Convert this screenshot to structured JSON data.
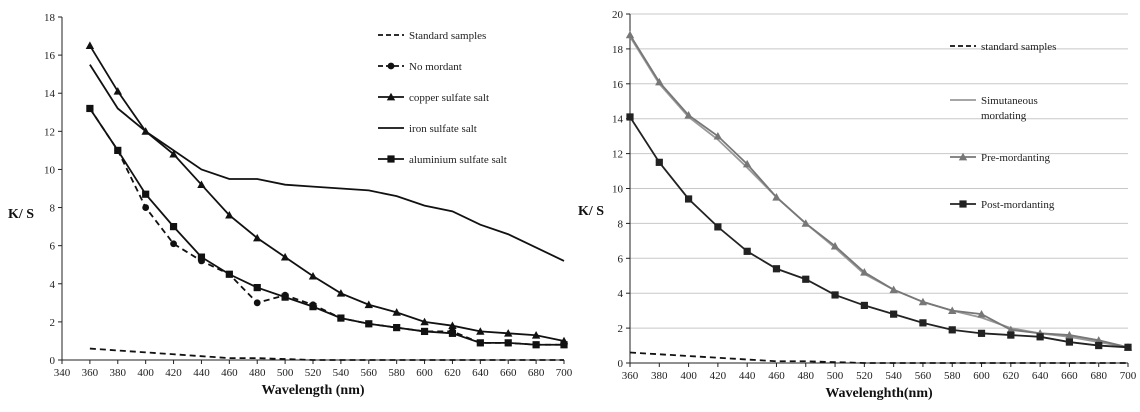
{
  "chart_data": [
    {
      "type": "line",
      "title": "",
      "xlabel": "Wavelength (nm)",
      "ylabel": "K/ S",
      "xlim": [
        340,
        700
      ],
      "ylim": [
        0,
        18
      ],
      "x_ticks": [
        "340",
        "360",
        "380",
        "400",
        "420",
        "440",
        "460",
        "480",
        "500",
        "520",
        "540",
        "560",
        "580",
        "600",
        "620",
        "640",
        "660",
        "680",
        "700"
      ],
      "y_ticks": [
        "0",
        "2",
        "4",
        "6",
        "8",
        "10",
        "12",
        "14",
        "16",
        "18"
      ],
      "grid": false,
      "legend_position": "top-right",
      "series": [
        {
          "name": "Standard samples",
          "style": "dashed",
          "marker": "none",
          "color": "#111111",
          "x": [
            360,
            380,
            400,
            420,
            440,
            460,
            480,
            500,
            520,
            540,
            560,
            580,
            600,
            620,
            640,
            660,
            680,
            700
          ],
          "y": [
            0.6,
            0.5,
            0.4,
            0.3,
            0.2,
            0.1,
            0.1,
            0.05,
            0.0,
            0.0,
            0.0,
            0.0,
            0.0,
            0.0,
            0.0,
            0.0,
            0.0,
            0.0
          ]
        },
        {
          "name": "No mordant",
          "style": "dashed",
          "marker": "circle",
          "color": "#111111",
          "x": [
            360,
            380,
            400,
            420,
            440,
            460,
            480,
            500,
            520,
            540,
            560,
            580,
            600,
            620,
            640,
            660,
            680,
            700
          ],
          "y": [
            13.2,
            11.0,
            8.0,
            6.1,
            5.2,
            4.5,
            3.0,
            3.4,
            2.9,
            2.2,
            1.9,
            1.7,
            1.5,
            1.5,
            0.9,
            0.9,
            0.8,
            0.8
          ]
        },
        {
          "name": "copper sulfate salt",
          "style": "solid",
          "marker": "triangle",
          "color": "#111111",
          "x": [
            360,
            380,
            400,
            420,
            440,
            460,
            480,
            500,
            520,
            540,
            560,
            580,
            600,
            620,
            640,
            660,
            680,
            700
          ],
          "y": [
            16.5,
            14.1,
            12.0,
            10.8,
            9.2,
            7.6,
            6.4,
            5.4,
            4.4,
            3.5,
            2.9,
            2.5,
            2.0,
            1.8,
            1.5,
            1.4,
            1.3,
            1.0
          ]
        },
        {
          "name": "iron sulfate salt",
          "style": "solid",
          "marker": "none",
          "color": "#111111",
          "x": [
            360,
            380,
            400,
            420,
            440,
            460,
            480,
            500,
            520,
            540,
            560,
            580,
            600,
            620,
            640,
            660,
            680,
            700
          ],
          "y": [
            15.5,
            13.2,
            12.0,
            11.0,
            10.0,
            9.5,
            9.5,
            9.2,
            9.1,
            9.0,
            8.9,
            8.6,
            8.1,
            7.8,
            7.1,
            6.6,
            5.9,
            5.2
          ]
        },
        {
          "name": "aluminium sulfate salt",
          "style": "solid",
          "marker": "square",
          "color": "#111111",
          "x": [
            360,
            380,
            400,
            420,
            440,
            460,
            480,
            500,
            520,
            540,
            560,
            580,
            600,
            620,
            640,
            660,
            680,
            700
          ],
          "y": [
            13.2,
            11.0,
            8.7,
            7.0,
            5.4,
            4.5,
            3.8,
            3.3,
            2.8,
            2.2,
            1.9,
            1.7,
            1.5,
            1.4,
            0.9,
            0.9,
            0.8,
            0.8
          ]
        }
      ]
    },
    {
      "type": "line",
      "title": "",
      "xlabel": "Wavelenghth(nm)",
      "ylabel": "K/ S",
      "xlim": [
        360,
        700
      ],
      "ylim": [
        0,
        20
      ],
      "x_ticks": [
        "360",
        "380",
        "400",
        "420",
        "440",
        "460",
        "480",
        "500",
        "520",
        "540",
        "560",
        "580",
        "600",
        "620",
        "640",
        "660",
        "680",
        "700"
      ],
      "y_ticks": [
        "0",
        "2",
        "4",
        "6",
        "8",
        "10",
        "12",
        "14",
        "16",
        "18",
        "20"
      ],
      "grid": true,
      "legend_position": "right",
      "series": [
        {
          "name": "standard samples",
          "style": "dashed",
          "marker": "none",
          "color": "#111111",
          "x": [
            360,
            380,
            400,
            420,
            440,
            460,
            480,
            500,
            520,
            540,
            560,
            580,
            600,
            620,
            640,
            660,
            680,
            700
          ],
          "y": [
            0.6,
            0.5,
            0.4,
            0.3,
            0.2,
            0.1,
            0.1,
            0.05,
            0.0,
            0.0,
            0.0,
            0.0,
            0.0,
            0.0,
            0.0,
            0.0,
            0.0,
            0.0
          ]
        },
        {
          "name": "Simutaneous mordating",
          "style": "solid",
          "marker": "none",
          "color": "#999999",
          "x": [
            360,
            380,
            400,
            420,
            440,
            460,
            480,
            500,
            520,
            540,
            560,
            580,
            600,
            620,
            640,
            660,
            680,
            700
          ],
          "y": [
            18.7,
            16.0,
            14.1,
            12.8,
            11.2,
            9.5,
            8.0,
            6.6,
            5.1,
            4.2,
            3.5,
            3.0,
            2.6,
            2.0,
            1.7,
            1.5,
            1.2,
            0.9
          ]
        },
        {
          "name": "Pre-mordanting",
          "style": "solid",
          "marker": "triangle",
          "color": "#777777",
          "x": [
            360,
            380,
            400,
            420,
            440,
            460,
            480,
            500,
            520,
            540,
            560,
            580,
            600,
            620,
            640,
            660,
            680,
            700
          ],
          "y": [
            18.8,
            16.1,
            14.2,
            13.0,
            11.4,
            9.5,
            8.0,
            6.7,
            5.2,
            4.2,
            3.5,
            3.0,
            2.8,
            1.9,
            1.7,
            1.6,
            1.3,
            0.9
          ]
        },
        {
          "name": "Post-mordanting",
          "style": "solid",
          "marker": "square",
          "color": "#222222",
          "x": [
            360,
            380,
            400,
            420,
            440,
            460,
            480,
            500,
            520,
            540,
            560,
            580,
            600,
            620,
            640,
            660,
            680,
            700
          ],
          "y": [
            14.1,
            11.5,
            9.4,
            7.8,
            6.4,
            5.4,
            4.8,
            3.9,
            3.3,
            2.8,
            2.3,
            1.9,
            1.7,
            1.6,
            1.5,
            1.2,
            1.0,
            0.9
          ]
        }
      ]
    }
  ]
}
